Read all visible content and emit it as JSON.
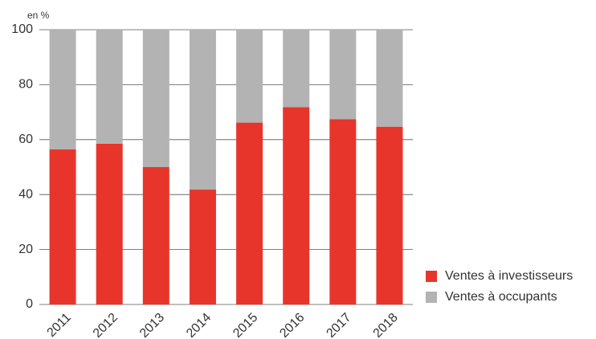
{
  "chart_data": {
    "type": "bar",
    "stacked": true,
    "y_label": "en %",
    "categories": [
      "2011",
      "2012",
      "2013",
      "2014",
      "2015",
      "2016",
      "2017",
      "2018"
    ],
    "series": [
      {
        "name": "Ventes à investisseurs",
        "color": "#e8352b",
        "values": [
          56.5,
          58.5,
          50,
          41.8,
          66.2,
          71.8,
          67.4,
          64.7
        ]
      },
      {
        "name": "Ventes à occupants",
        "color": "#b3b3b3",
        "values": [
          43.5,
          41.5,
          50,
          58.2,
          33.8,
          28.2,
          32.6,
          35.3
        ]
      }
    ],
    "ylim": [
      0,
      100
    ],
    "yticks": [
      0,
      20,
      40,
      60,
      80,
      100
    ],
    "grid": true,
    "legend": "lower right"
  }
}
